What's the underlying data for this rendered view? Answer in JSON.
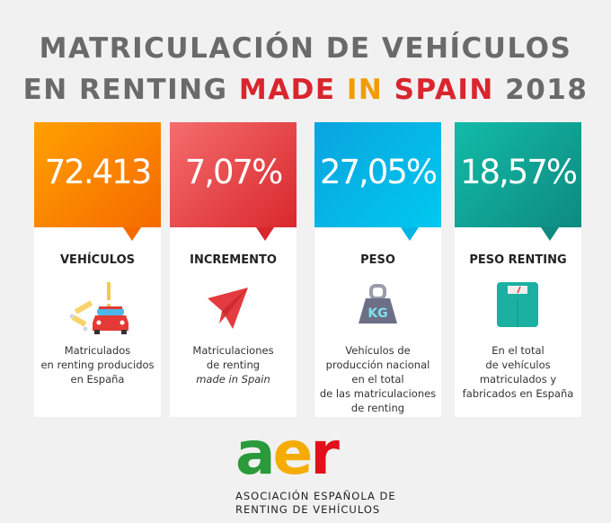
{
  "title": {
    "line1": "MATRICULACIÓN DE VEHÍCULOS",
    "line2_a": "EN RENTING",
    "line2_made": "MADE",
    "line2_in": "IN",
    "line2_spain": "SPAIN",
    "line2_year": "2018"
  },
  "cards": [
    {
      "value": "72.413",
      "label": "VEHÍCULOS",
      "icon": "car-icon",
      "color": "#f57c00",
      "desc": [
        "Matriculados",
        "en renting producidos",
        "en España"
      ]
    },
    {
      "value": "7,07%",
      "label": "INCREMENTO",
      "icon": "paper-plane-icon",
      "color": "#e0383d",
      "desc": [
        "Matriculaciones",
        "de renting",
        "made in Spain"
      ]
    },
    {
      "value": "27,05%",
      "label": "PESO",
      "icon": "kg-weight-icon",
      "color": "#13a6dc",
      "desc": [
        "Vehículos de",
        "producción nacional",
        "en el total",
        "de las matriculaciones",
        "de renting"
      ]
    },
    {
      "value": "18,57%",
      "label": "PESO RENTING",
      "icon": "scale-icon",
      "color": "#15a091",
      "desc": [
        "En el total",
        "de vehículos",
        "matriculados y",
        "fabricados en España"
      ]
    }
  ],
  "logo": {
    "letters": [
      "a",
      "e",
      "r"
    ],
    "line1": "ASOCIACIÓN ESPAÑOLA DE",
    "line2": "RENTING DE VEHÍCULOS"
  }
}
